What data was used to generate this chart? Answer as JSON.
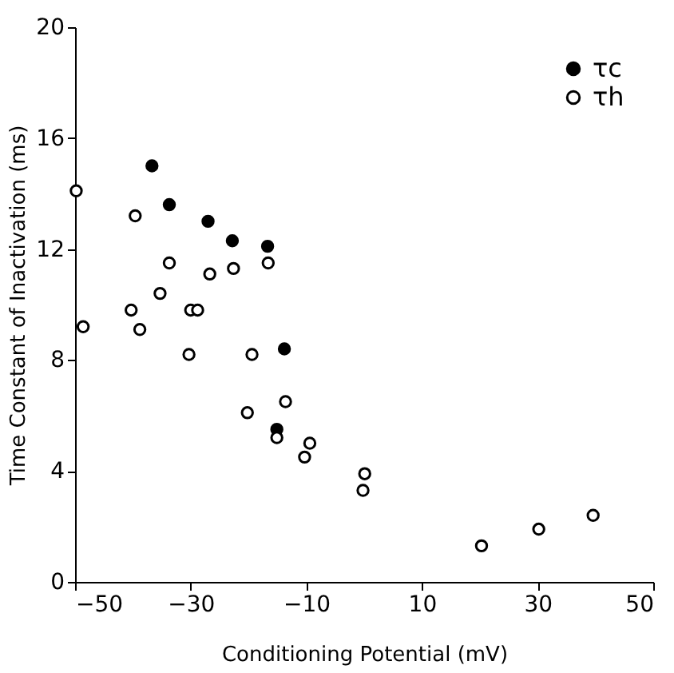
{
  "chart_data": {
    "type": "scatter",
    "xlabel": "Conditioning Potential (mV)",
    "ylabel": "Time Constant of Inactivation (ms)",
    "xlim": [
      -50,
      50
    ],
    "xticks": [
      -50,
      -30,
      -10,
      10,
      30,
      50
    ],
    "ylim": [
      0,
      20
    ],
    "yticks": [
      0,
      4,
      8,
      12,
      16,
      20
    ],
    "grid": false,
    "legend": "top right",
    "marker": "circle",
    "series": [
      {
        "name": "τc",
        "color": "#000000",
        "x": [
          -36.7,
          -33.7,
          -27,
          -22.8,
          -16.7,
          -13.8,
          -15.1
        ],
        "values": [
          15.0,
          13.6,
          13.0,
          12.3,
          12.1,
          8.4,
          5.5
        ]
      },
      {
        "name": "τh",
        "color": "#000000",
        "x": [
          -49.8,
          -39.6,
          -33.7,
          -26.7,
          -22.6,
          -16.6,
          -35.3,
          -40.3,
          -30,
          -28.8,
          -38.8,
          -48.6,
          -19.4,
          -30.3,
          -20.2,
          -13.6,
          -15.1,
          -9.4,
          -10.3,
          0.1,
          -0.2,
          20.3,
          30.2,
          39.6
        ],
        "values": [
          14.1,
          13.2,
          11.5,
          11.1,
          11.3,
          11.5,
          10.4,
          9.8,
          9.8,
          9.8,
          9.1,
          9.2,
          8.2,
          8.2,
          6.1,
          6.5,
          5.2,
          5.0,
          4.5,
          3.9,
          3.3,
          1.3,
          1.9,
          2.4
        ]
      }
    ]
  }
}
